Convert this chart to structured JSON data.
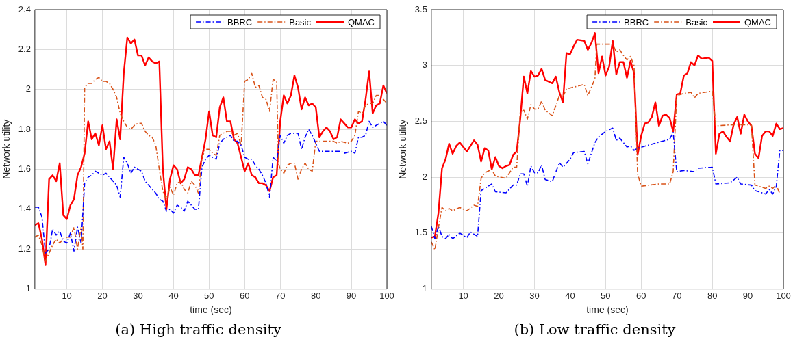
{
  "chart_data": [
    {
      "type": "line",
      "title": "(a) High traffic density",
      "xlabel": "time (sec)",
      "ylabel": "Network utility",
      "xlim": [
        1,
        100
      ],
      "xticks": [
        10,
        20,
        30,
        40,
        50,
        60,
        70,
        80,
        90,
        100
      ],
      "ylim": [
        1,
        2.4
      ],
      "yticks": [
        1,
        1.2,
        1.4,
        1.6,
        1.8,
        2,
        2.2,
        2.4
      ],
      "grid": true,
      "legend": "top right",
      "marker": "none",
      "series": [
        {
          "name": "BBRC",
          "color": "#0000ff",
          "line_style": "dashed",
          "x": [
            1,
            2,
            3,
            4,
            5,
            6,
            7,
            8,
            9,
            10,
            11,
            12,
            13,
            14,
            15,
            16,
            17,
            18,
            19,
            20,
            21,
            22,
            23,
            24,
            25,
            26,
            27,
            28,
            29,
            30,
            31,
            32,
            33,
            34,
            35,
            36,
            37,
            38,
            39,
            40,
            41,
            42,
            43,
            44,
            45,
            46,
            47,
            48,
            49,
            50,
            51,
            52,
            53,
            54,
            55,
            56,
            57,
            58,
            59,
            60,
            61,
            62,
            63,
            64,
            65,
            66,
            67,
            68,
            69,
            70,
            71,
            72,
            73,
            74,
            75,
            76,
            77,
            78,
            79,
            80,
            81,
            82,
            85,
            87,
            88,
            90,
            91,
            92,
            93,
            94,
            95,
            96,
            97,
            98,
            99,
            100
          ],
          "values": [
            1.41,
            1.41,
            1.36,
            1.18,
            1.2,
            1.3,
            1.27,
            1.29,
            1.24,
            1.23,
            1.28,
            1.19,
            1.31,
            1.23,
            1.53,
            1.56,
            1.57,
            1.59,
            1.58,
            1.57,
            1.58,
            1.56,
            1.54,
            1.52,
            1.46,
            1.66,
            1.63,
            1.58,
            1.61,
            1.6,
            1.59,
            1.54,
            1.52,
            1.5,
            1.48,
            1.45,
            1.44,
            1.39,
            1.4,
            1.38,
            1.42,
            1.41,
            1.39,
            1.44,
            1.42,
            1.4,
            1.4,
            1.61,
            1.65,
            1.67,
            1.66,
            1.65,
            1.73,
            1.75,
            1.76,
            1.77,
            1.74,
            1.74,
            1.72,
            1.66,
            1.65,
            1.65,
            1.62,
            1.6,
            1.57,
            1.53,
            1.46,
            1.66,
            1.64,
            1.77,
            1.73,
            1.77,
            1.78,
            1.78,
            1.78,
            1.7,
            1.76,
            1.8,
            1.77,
            1.73,
            1.69,
            1.69,
            1.69,
            1.69,
            1.68,
            1.69,
            1.68,
            1.76,
            1.76,
            1.77,
            1.84,
            1.81,
            1.82,
            1.83,
            1.84,
            1.82
          ]
        },
        {
          "name": "Basic",
          "color": "#d95319",
          "line_style": "dashed",
          "x": [
            1,
            2,
            3,
            4,
            5,
            6,
            7,
            8,
            9,
            10,
            11,
            12,
            13,
            14,
            14.5,
            15,
            16,
            17,
            18,
            19,
            20,
            21,
            22,
            23,
            24,
            25,
            26,
            27,
            28,
            29,
            30,
            31,
            32,
            33,
            34,
            35,
            36,
            37,
            38,
            39,
            40,
            41,
            42,
            43,
            44,
            45,
            46,
            47,
            48,
            49,
            50,
            51,
            52,
            53,
            54,
            55,
            56,
            57,
            58,
            59,
            60,
            61,
            62,
            63,
            64,
            65,
            66,
            67,
            68,
            69,
            69.5,
            70,
            71,
            72,
            73,
            74,
            75,
            76,
            77,
            78,
            79,
            80,
            81,
            85,
            86,
            87,
            89,
            90,
            91,
            92,
            93,
            94,
            95,
            96,
            97,
            98,
            99,
            100
          ],
          "values": [
            1.26,
            1.27,
            1.22,
            1.14,
            1.18,
            1.22,
            1.25,
            1.23,
            1.25,
            1.26,
            1.26,
            1.31,
            1.2,
            1.31,
            1.2,
            2.01,
            2.03,
            2.03,
            2.05,
            2.06,
            2.04,
            2.04,
            2.03,
            2,
            1.96,
            1.88,
            1.84,
            1.81,
            1.8,
            1.82,
            1.83,
            1.83,
            1.79,
            1.77,
            1.76,
            1.72,
            1.6,
            1.49,
            1.45,
            1.51,
            1.47,
            1.53,
            1.54,
            1.5,
            1.48,
            1.54,
            1.52,
            1.48,
            1.66,
            1.7,
            1.7,
            1.68,
            1.67,
            1.77,
            1.78,
            1.79,
            1.79,
            1.77,
            1.78,
            1.72,
            2.04,
            2.05,
            2.08,
            2.01,
            2.02,
            1.96,
            1.95,
            1.89,
            2.05,
            2.04,
            1.63,
            1.6,
            1.58,
            1.62,
            1.63,
            1.63,
            1.55,
            1.6,
            1.63,
            1.6,
            1.59,
            1.74,
            1.74,
            1.74,
            1.73,
            1.74,
            1.73,
            1.74,
            1.77,
            1.89,
            1.88,
            1.92,
            1.93,
            1.93,
            1.97,
            1.97,
            1.95,
            1.93
          ]
        },
        {
          "name": "QMAC",
          "color": "#ff0000",
          "line_style": "solid",
          "x": [
            1,
            2,
            3,
            4,
            5,
            6,
            7,
            8,
            9,
            10,
            11,
            12,
            13,
            14,
            15,
            16,
            17,
            18,
            19,
            20,
            21,
            22,
            23,
            24,
            25,
            26,
            27,
            28,
            29,
            30,
            31,
            32,
            33,
            34,
            35,
            36,
            37,
            38,
            39,
            40,
            41,
            42,
            43,
            44,
            45,
            46,
            47,
            48,
            49,
            50,
            51,
            52,
            53,
            54,
            55,
            56,
            57,
            58,
            59,
            60,
            61,
            62,
            63,
            64,
            65,
            66,
            67,
            68,
            69,
            70,
            71,
            72,
            73,
            74,
            75,
            76,
            77,
            78,
            79,
            80,
            81,
            82,
            83,
            84,
            85,
            86,
            87,
            88,
            89,
            90,
            91,
            92,
            93,
            94,
            95,
            96,
            97,
            98,
            99,
            100
          ],
          "values": [
            1.32,
            1.33,
            1.25,
            1.12,
            1.55,
            1.57,
            1.54,
            1.63,
            1.37,
            1.35,
            1.42,
            1.45,
            1.57,
            1.61,
            1.68,
            1.84,
            1.75,
            1.78,
            1.72,
            1.82,
            1.7,
            1.74,
            1.6,
            1.85,
            1.75,
            2.08,
            2.26,
            2.23,
            2.25,
            2.17,
            2.17,
            2.12,
            2.16,
            2.14,
            2.13,
            2.14,
            1.6,
            1.4,
            1.55,
            1.62,
            1.6,
            1.53,
            1.55,
            1.61,
            1.6,
            1.57,
            1.57,
            1.66,
            1.75,
            1.89,
            1.77,
            1.76,
            1.91,
            1.96,
            1.84,
            1.84,
            1.75,
            1.73,
            1.66,
            1.59,
            1.63,
            1.57,
            1.56,
            1.53,
            1.53,
            1.52,
            1.49,
            1.56,
            1.57,
            1.84,
            1.97,
            1.93,
            1.97,
            2.07,
            2.01,
            1.9,
            1.96,
            1.92,
            1.93,
            1.91,
            1.76,
            1.79,
            1.81,
            1.79,
            1.75,
            1.76,
            1.85,
            1.83,
            1.81,
            1.81,
            1.85,
            1.83,
            1.84,
            1.95,
            2.09,
            1.88,
            1.92,
            1.93,
            2.02,
            1.98
          ]
        }
      ]
    },
    {
      "type": "line",
      "title": "(b) Low traffic density",
      "xlabel": "time (sec)",
      "ylabel": "Network utility",
      "xlim": [
        1,
        100
      ],
      "xticks": [
        10,
        20,
        30,
        40,
        50,
        60,
        70,
        80,
        90,
        100
      ],
      "ylim": [
        1,
        3.5
      ],
      "yticks": [
        1,
        1.5,
        2,
        2.5,
        3,
        3.5
      ],
      "grid": true,
      "legend": "top right",
      "marker": "none",
      "series": [
        {
          "name": "BBRC",
          "color": "#0000ff",
          "line_style": "dashed",
          "x": [
            1,
            2,
            3,
            4,
            5,
            6,
            7,
            9,
            11,
            12,
            14,
            15,
            16,
            18,
            19,
            22,
            24,
            25,
            26,
            27,
            28,
            29,
            30,
            31,
            32,
            33,
            35,
            37,
            38,
            40,
            41,
            44,
            45,
            47,
            48,
            50,
            52,
            53,
            54,
            56,
            57,
            58,
            59,
            68,
            69,
            70,
            72,
            75,
            76,
            80,
            81,
            85,
            87,
            88,
            91,
            92,
            94,
            95,
            96,
            97,
            98,
            99,
            100
          ],
          "values": [
            1.56,
            1.45,
            1.56,
            1.47,
            1.45,
            1.49,
            1.45,
            1.5,
            1.46,
            1.51,
            1.47,
            1.88,
            1.9,
            1.94,
            1.87,
            1.86,
            1.93,
            1.93,
            2.03,
            2.03,
            1.92,
            2.1,
            2.04,
            2.04,
            2.11,
            1.98,
            1.96,
            2.13,
            2.09,
            2.16,
            2.22,
            2.23,
            2.12,
            2.31,
            2.36,
            2.41,
            2.44,
            2.33,
            2.35,
            2.27,
            2.28,
            2.24,
            2.26,
            2.34,
            2.4,
            2.05,
            2.06,
            2.05,
            2.08,
            2.09,
            1.94,
            1.95,
            2,
            1.94,
            1.93,
            1.88,
            1.86,
            1.85,
            1.89,
            1.85,
            1.92,
            2.24,
            2.24
          ]
        },
        {
          "name": "Basic",
          "color": "#d95319",
          "line_style": "dashed",
          "x": [
            1,
            2,
            3,
            4,
            5,
            6,
            7,
            9,
            11,
            13,
            14,
            15,
            16,
            18,
            19,
            22,
            24,
            25,
            26,
            27,
            28,
            29,
            30,
            31,
            32,
            33,
            35,
            37,
            38,
            39,
            44,
            45,
            47,
            47.5,
            50,
            52,
            53,
            54,
            55,
            56,
            57,
            58,
            59,
            60,
            65,
            68,
            69,
            70,
            72,
            74,
            75,
            76,
            80,
            81,
            86,
            91,
            92,
            93,
            95,
            96,
            97,
            98,
            99
          ],
          "values": [
            1.42,
            1.35,
            1.55,
            1.73,
            1.7,
            1.72,
            1.7,
            1.73,
            1.7,
            1.75,
            1.74,
            1.99,
            2.04,
            2.07,
            2.01,
            1.99,
            2.09,
            2.09,
            2.58,
            2.6,
            2.52,
            2.65,
            2.61,
            2.61,
            2.68,
            2.6,
            2.55,
            2.73,
            2.72,
            2.79,
            2.83,
            2.73,
            2.88,
            3.19,
            3.19,
            3.19,
            3.12,
            3.14,
            3.09,
            3.05,
            3.08,
            3,
            2.03,
            1.92,
            1.94,
            1.94,
            2.05,
            2.73,
            2.75,
            2.76,
            2.71,
            2.75,
            2.77,
            2.46,
            2.47,
            2.47,
            1.93,
            1.92,
            1.9,
            1.92,
            1.9,
            1.93,
            1.85
          ]
        },
        {
          "name": "QMAC",
          "color": "#ff0000",
          "line_style": "solid",
          "x": [
            1,
            2,
            3,
            4,
            5,
            6,
            7,
            8,
            9,
            11,
            13,
            14,
            15,
            16,
            17,
            18,
            19,
            20,
            21,
            22,
            23,
            24,
            25,
            26,
            27,
            28,
            29,
            30,
            31,
            32,
            33,
            35,
            36,
            37,
            38,
            39,
            40,
            41,
            42,
            44,
            45,
            46,
            47,
            48,
            49,
            50,
            51,
            52,
            53,
            54,
            55,
            56,
            57,
            58,
            59,
            60,
            61,
            62,
            63,
            64,
            65,
            66,
            67,
            68,
            69,
            70,
            71,
            72,
            73,
            74,
            75,
            76,
            77,
            79,
            80,
            81,
            82,
            83,
            84,
            85,
            86,
            87,
            88,
            89,
            90,
            91,
            92,
            93,
            94,
            95,
            96,
            97,
            98,
            99,
            100
          ],
          "values": [
            1.46,
            1.47,
            1.68,
            2.08,
            2.16,
            2.3,
            2.21,
            2.28,
            2.31,
            2.23,
            2.33,
            2.29,
            2.14,
            2.26,
            2.24,
            2.07,
            2.18,
            2.1,
            2.08,
            2.1,
            2.11,
            2.2,
            2.23,
            2.52,
            2.9,
            2.75,
            2.95,
            2.9,
            2.91,
            2.97,
            2.87,
            2.84,
            2.9,
            2.76,
            2.67,
            3.11,
            3.1,
            3.17,
            3.23,
            3.22,
            3.14,
            3.2,
            3.29,
            2.93,
            3.08,
            2.91,
            2.99,
            3.22,
            2.92,
            3.03,
            3.03,
            2.89,
            3.04,
            2.93,
            2.2,
            2.37,
            2.48,
            2.49,
            2.54,
            2.67,
            2.46,
            2.55,
            2.56,
            2.53,
            2.41,
            2.74,
            2.75,
            2.91,
            2.93,
            3.03,
            3,
            3.09,
            3.06,
            3.07,
            3.04,
            2.21,
            2.39,
            2.41,
            2.36,
            2.32,
            2.47,
            2.54,
            2.39,
            2.56,
            2.5,
            2.46,
            2.21,
            2.17,
            2.37,
            2.41,
            2.41,
            2.37,
            2.48,
            2.43,
            2.44
          ]
        }
      ]
    }
  ]
}
